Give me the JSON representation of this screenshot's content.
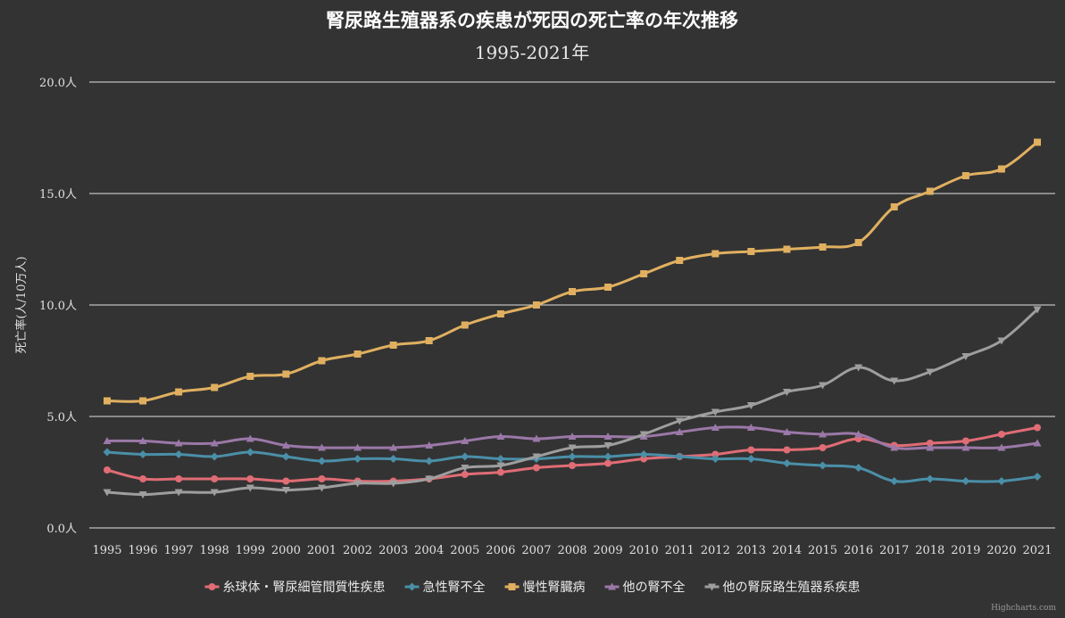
{
  "chart_data": {
    "type": "line",
    "title": "腎尿路生殖器系の疾患が死因の死亡率の年次推移",
    "subtitle": "1995-2021年",
    "ylabel": "死亡率(人/10万人)",
    "xlabel": "",
    "ylim": [
      0,
      20
    ],
    "yticks": [
      0,
      5,
      10,
      15,
      20
    ],
    "ytick_labels": [
      "0.0人",
      "5.0人",
      "10.0人",
      "15.0人",
      "20.0人"
    ],
    "grid": true,
    "legend_position": "bottom",
    "categories": [
      "1995",
      "1996",
      "1997",
      "1998",
      "1999",
      "2000",
      "2001",
      "2002",
      "2003",
      "2004",
      "2005",
      "2006",
      "2007",
      "2008",
      "2009",
      "2010",
      "2011",
      "2012",
      "2013",
      "2014",
      "2015",
      "2016",
      "2017",
      "2018",
      "2019",
      "2020",
      "2021"
    ],
    "series": [
      {
        "name": "糸球体・腎尿細管間質性疾患",
        "color": "#e06c75",
        "marker": "circle",
        "values": [
          2.6,
          2.2,
          2.2,
          2.2,
          2.2,
          2.1,
          2.2,
          2.1,
          2.1,
          2.2,
          2.4,
          2.5,
          2.7,
          2.8,
          2.9,
          3.1,
          3.2,
          3.3,
          3.5,
          3.5,
          3.6,
          4.0,
          3.7,
          3.8,
          3.9,
          4.2,
          4.5
        ]
      },
      {
        "name": "急性腎不全",
        "color": "#4a8fa8",
        "marker": "diamond",
        "values": [
          3.4,
          3.3,
          3.3,
          3.2,
          3.4,
          3.2,
          3.0,
          3.1,
          3.1,
          3.0,
          3.2,
          3.1,
          3.1,
          3.2,
          3.2,
          3.3,
          3.2,
          3.1,
          3.1,
          2.9,
          2.8,
          2.7,
          2.1,
          2.2,
          2.1,
          2.1,
          2.3
        ]
      },
      {
        "name": "慢性腎臓病",
        "color": "#e0b060",
        "marker": "square",
        "values": [
          5.7,
          5.7,
          6.1,
          6.3,
          6.8,
          6.9,
          7.5,
          7.8,
          8.2,
          8.4,
          9.1,
          9.6,
          10.0,
          10.6,
          10.8,
          11.4,
          12.0,
          12.3,
          12.4,
          12.5,
          12.6,
          12.8,
          14.4,
          15.1,
          15.8,
          16.1,
          17.3
        ]
      },
      {
        "name": "他の腎不全",
        "color": "#9b78a8",
        "marker": "triangle",
        "values": [
          3.9,
          3.9,
          3.8,
          3.8,
          4.0,
          3.7,
          3.6,
          3.6,
          3.6,
          3.7,
          3.9,
          4.1,
          4.0,
          4.1,
          4.1,
          4.1,
          4.3,
          4.5,
          4.5,
          4.3,
          4.2,
          4.2,
          3.6,
          3.6,
          3.6,
          3.6,
          3.8
        ]
      },
      {
        "name": "他の腎尿路生殖器系疾患",
        "color": "#9e9e9e",
        "marker": "triangle-down",
        "values": [
          1.6,
          1.5,
          1.6,
          1.6,
          1.8,
          1.7,
          1.8,
          2.0,
          2.0,
          2.2,
          2.7,
          2.8,
          3.2,
          3.6,
          3.7,
          4.2,
          4.8,
          5.2,
          5.5,
          6.1,
          6.4,
          7.2,
          6.6,
          7.0,
          7.7,
          8.4,
          9.8
        ]
      }
    ]
  },
  "credits": "Highcharts.com"
}
